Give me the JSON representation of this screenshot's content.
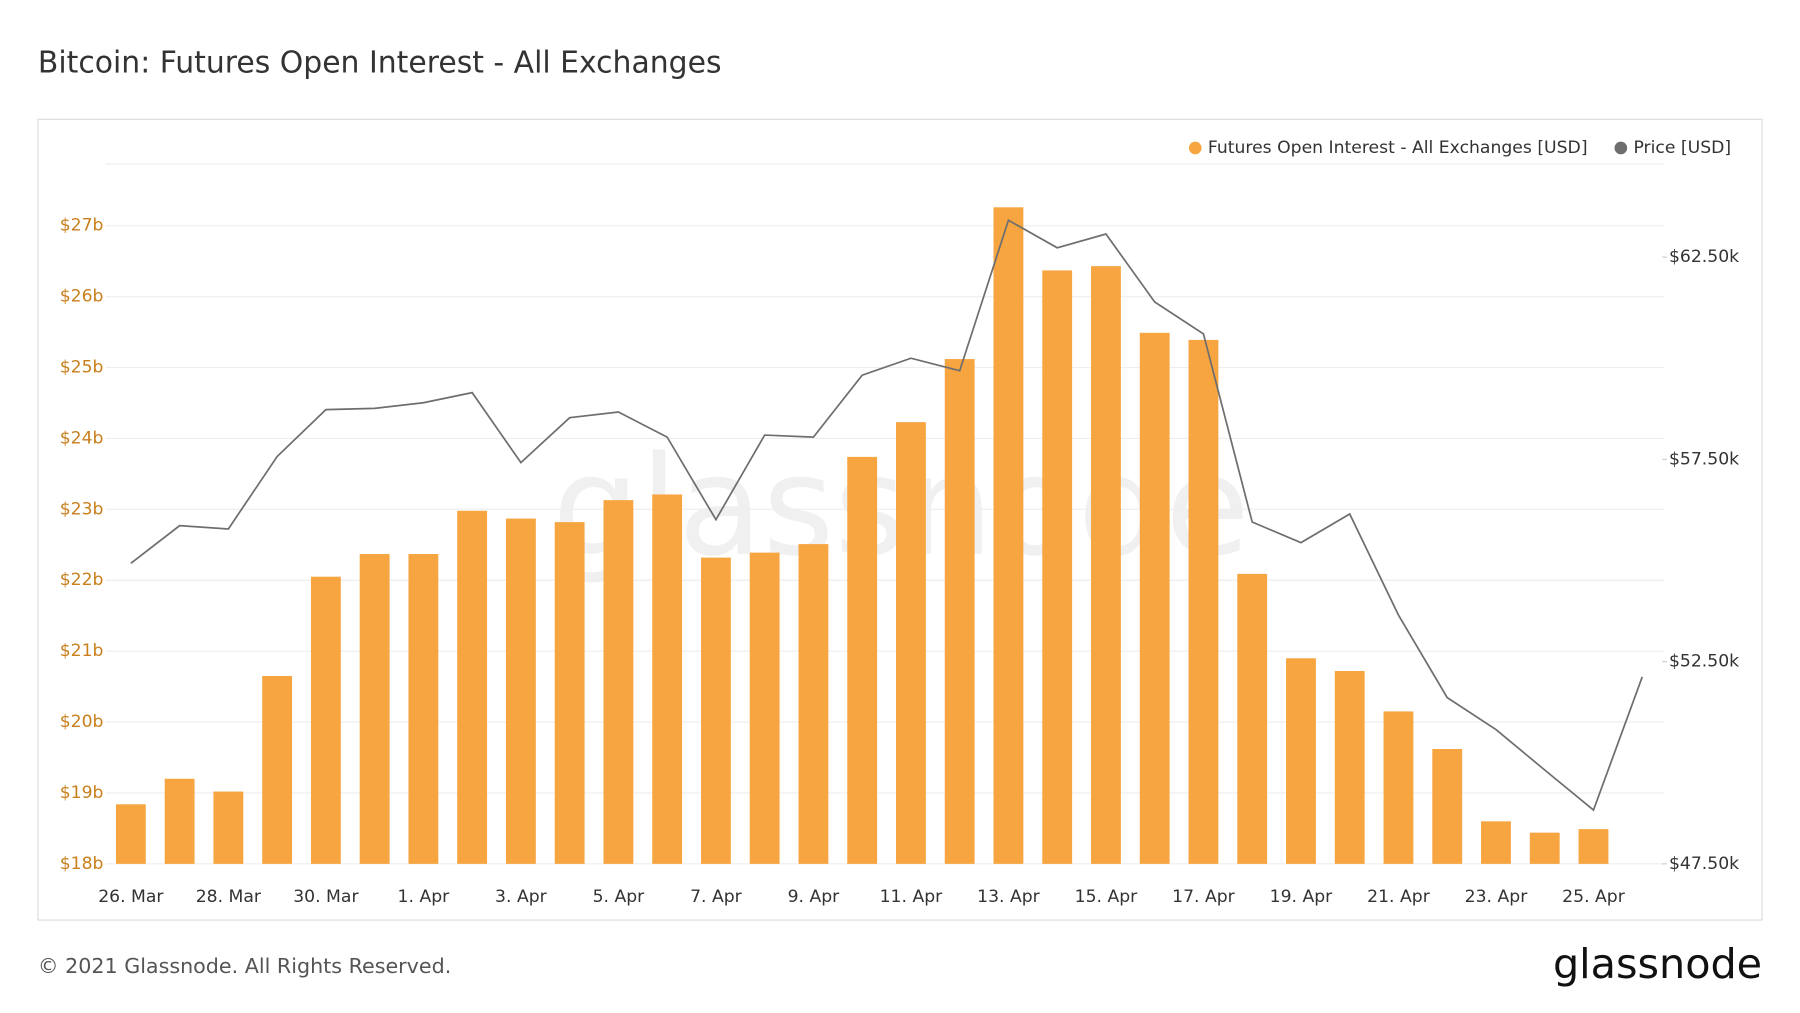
{
  "chart_data": {
    "type": "bar",
    "title": "Bitcoin: Futures Open Interest - All Exchanges",
    "categories": [
      "26. Mar",
      null,
      "28. Mar",
      null,
      "30. Mar",
      null,
      "1. Apr",
      null,
      "3. Apr",
      null,
      "5. Apr",
      null,
      "7. Apr",
      null,
      "9. Apr",
      null,
      "11. Apr",
      null,
      "13. Apr",
      null,
      "15. Apr",
      null,
      "17. Apr",
      null,
      "19. Apr",
      null,
      "21. Apr",
      null,
      "23. Apr",
      null,
      "25. Apr",
      null
    ],
    "series": [
      {
        "name": "Futures Open Interest - All Exchanges [USD]",
        "color": "#f7a541",
        "type": "bar",
        "axis": "y",
        "values": [
          18.84,
          19.2,
          19.02,
          20.65,
          22.05,
          22.37,
          22.37,
          22.98,
          22.87,
          22.82,
          23.13,
          23.21,
          22.32,
          22.39,
          22.51,
          23.74,
          24.23,
          25.12,
          27.26,
          26.37,
          26.43,
          25.49,
          25.39,
          22.09,
          20.9,
          20.72,
          20.15,
          19.62,
          18.6,
          18.44,
          18.49,
          null
        ]
      },
      {
        "name": "Price [USD]",
        "color": "#6e6e6e",
        "type": "line",
        "axis": "y2",
        "values": [
          54.93,
          55.86,
          55.78,
          57.57,
          58.73,
          58.76,
          58.9,
          59.15,
          57.42,
          58.53,
          58.67,
          58.05,
          56.01,
          58.1,
          58.05,
          59.58,
          60.0,
          59.69,
          63.41,
          62.73,
          63.07,
          61.39,
          60.6,
          55.95,
          55.44,
          56.15,
          53.65,
          51.61,
          50.82,
          49.82,
          48.83,
          52.12
        ]
      }
    ],
    "ylim": [
      18,
      27.87
    ],
    "yticks": [
      {
        "value": 18,
        "label": "$18b"
      },
      {
        "value": 19,
        "label": "$19b"
      },
      {
        "value": 20,
        "label": "$20b"
      },
      {
        "value": 21,
        "label": "$21b"
      },
      {
        "value": 22,
        "label": "$22b"
      },
      {
        "value": 23,
        "label": "$23b"
      },
      {
        "value": 24,
        "label": "$24b"
      },
      {
        "value": 25,
        "label": "$25b"
      },
      {
        "value": 26,
        "label": "$26b"
      },
      {
        "value": 27,
        "label": "$27b"
      }
    ],
    "y2lim": [
      47.5,
      64.8
    ],
    "y2ticks": [
      {
        "value": 47.5,
        "label": "$47.50k"
      },
      {
        "value": 52.5,
        "label": "$52.50k"
      },
      {
        "value": 57.5,
        "label": "$57.50k"
      },
      {
        "value": 62.5,
        "label": "$62.50k"
      }
    ],
    "grid": true,
    "legend": "top-right",
    "watermark": "glassnode",
    "footer": "© 2021 Glassnode. All Rights Reserved.",
    "logo": "glassnode"
  }
}
